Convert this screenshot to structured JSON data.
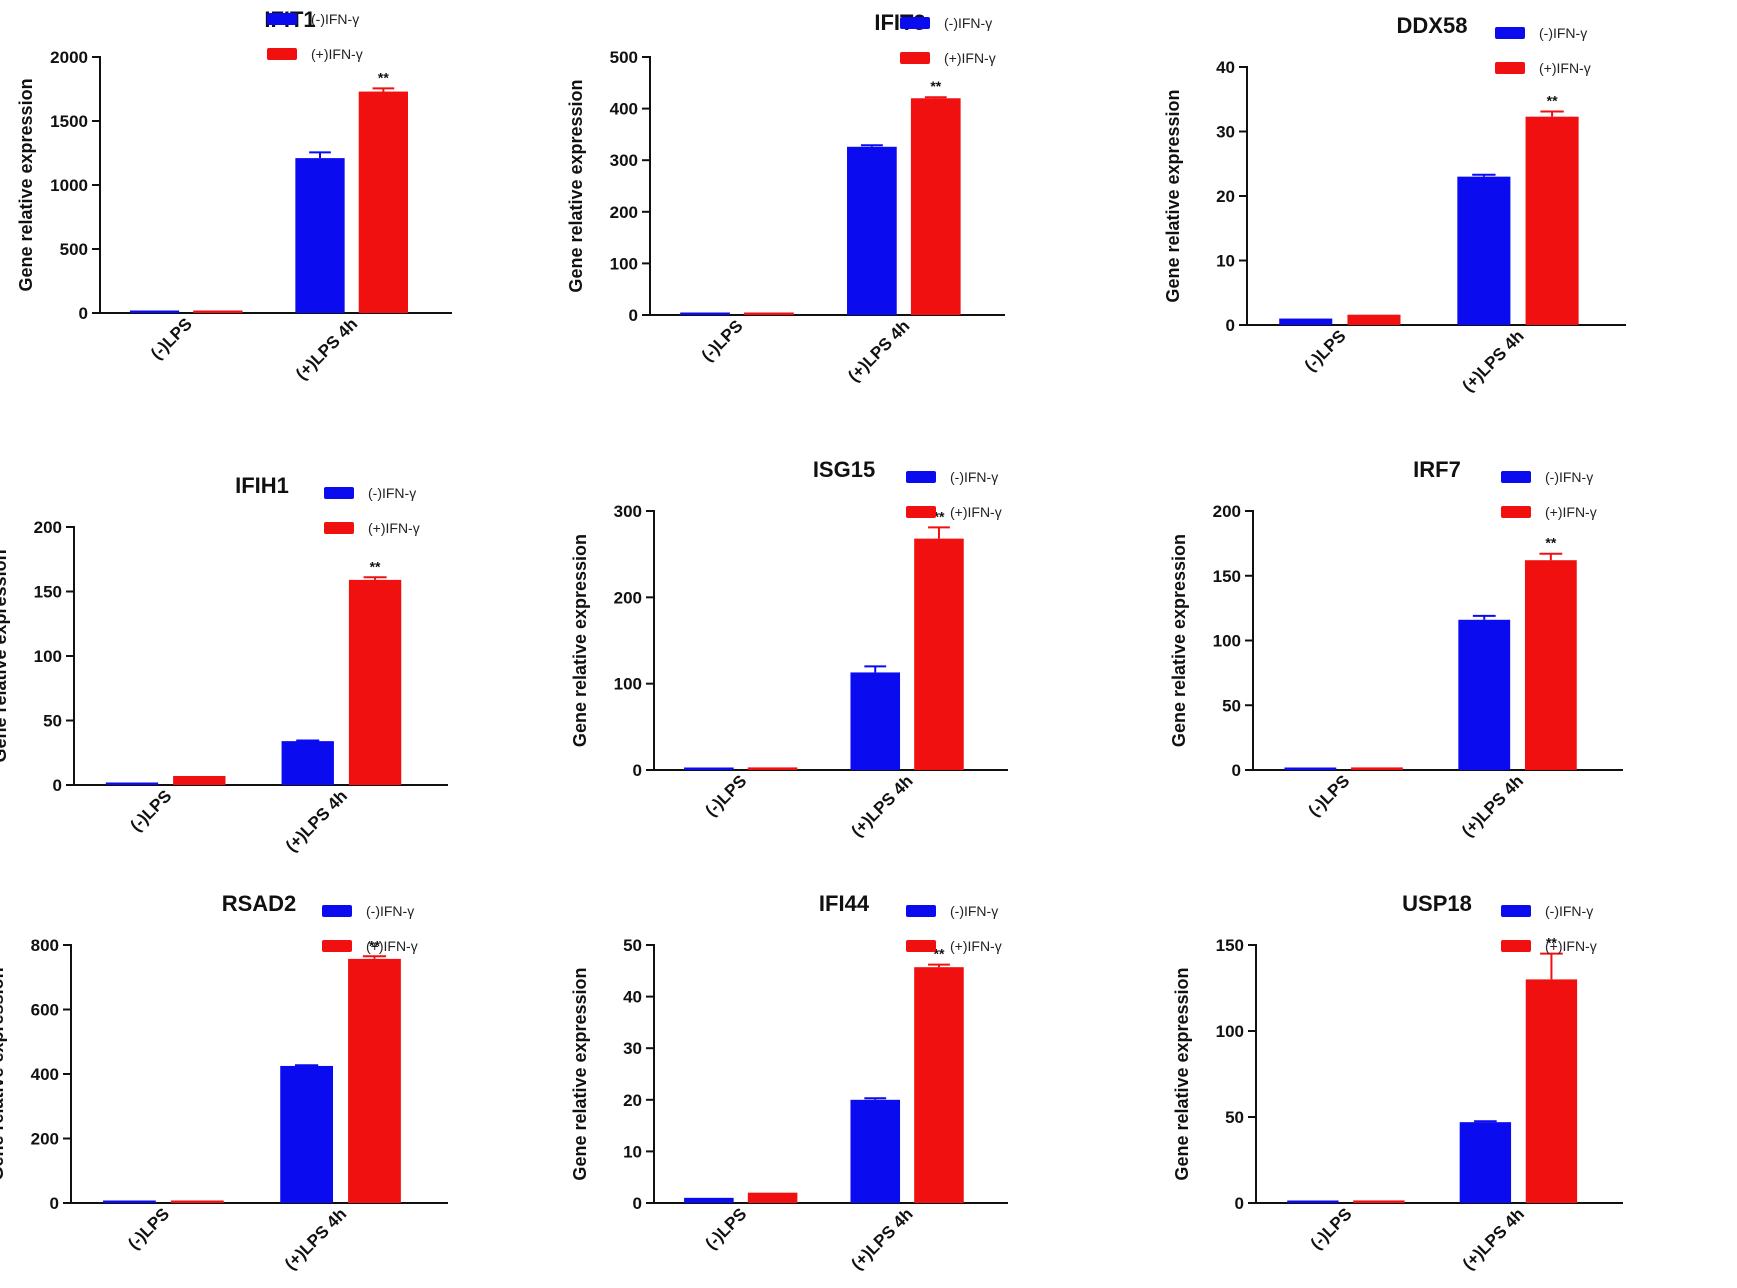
{
  "legend_labels": [
    "(-)IFN-γ",
    "(+)IFN-γ"
  ],
  "chart_data": [
    {
      "type": "bar",
      "title": "IFIT1",
      "ylabel": "Gene relative expression",
      "categories": [
        "(-)LPS",
        "(+)LPS 4h"
      ],
      "ylim": [
        0,
        2000
      ],
      "yticks": [
        0,
        500,
        1000,
        1500,
        2000
      ],
      "series": [
        {
          "name": "(-)IFN-γ",
          "color": "#0b0bf0",
          "values": [
            1,
            1210
          ],
          "errors": [
            0,
            45
          ]
        },
        {
          "name": "(+)IFN-γ",
          "color": "#f01010",
          "values": [
            3,
            1730
          ],
          "errors": [
            0,
            25
          ]
        }
      ],
      "annotation": "**"
    },
    {
      "type": "bar",
      "title": "IFIT3",
      "ylabel": "Gene relative expression",
      "categories": [
        "(-)LPS",
        "(+)LPS 4h"
      ],
      "ylim": [
        0,
        500
      ],
      "yticks": [
        0,
        100,
        200,
        300,
        400,
        500
      ],
      "series": [
        {
          "name": "(-)IFN-γ",
          "color": "#0b0bf0",
          "values": [
            1,
            326
          ],
          "errors": [
            0,
            3
          ]
        },
        {
          "name": "(+)IFN-γ",
          "color": "#f01010",
          "values": [
            2,
            420
          ],
          "errors": [
            0,
            2
          ]
        }
      ],
      "annotation": "**"
    },
    {
      "type": "bar",
      "title": "DDX58",
      "ylabel": "Gene relative expression",
      "categories": [
        "(-)LPS",
        "(+)LPS 4h"
      ],
      "ylim": [
        0,
        40
      ],
      "yticks": [
        0,
        10,
        20,
        30,
        40
      ],
      "series": [
        {
          "name": "(-)IFN-γ",
          "color": "#0b0bf0",
          "values": [
            1,
            23
          ],
          "errors": [
            0,
            0.3
          ]
        },
        {
          "name": "(+)IFN-γ",
          "color": "#f01010",
          "values": [
            1.6,
            32.3
          ],
          "errors": [
            0,
            0.8
          ]
        }
      ],
      "annotation": "**"
    },
    {
      "type": "bar",
      "title": "IFIH1",
      "ylabel": "Gene relative expression",
      "categories": [
        "(-)LPS",
        "(+)LPS 4h"
      ],
      "ylim": [
        0,
        200
      ],
      "yticks": [
        0,
        50,
        100,
        150,
        200
      ],
      "series": [
        {
          "name": "(-)IFN-γ",
          "color": "#0b0bf0",
          "values": [
            1,
            34
          ],
          "errors": [
            0,
            0.5
          ]
        },
        {
          "name": "(+)IFN-γ",
          "color": "#f01010",
          "values": [
            7,
            159
          ],
          "errors": [
            0,
            2
          ]
        }
      ],
      "annotation": "**"
    },
    {
      "type": "bar",
      "title": "ISG15",
      "ylabel": "Gene relative expression",
      "categories": [
        "(-)LPS",
        "(+)LPS 4h"
      ],
      "ylim": [
        0,
        300
      ],
      "yticks": [
        0,
        100,
        200,
        300
      ],
      "series": [
        {
          "name": "(-)IFN-γ",
          "color": "#0b0bf0",
          "values": [
            1,
            113
          ],
          "errors": [
            0,
            7
          ]
        },
        {
          "name": "(+)IFN-γ",
          "color": "#f01010",
          "values": [
            3,
            268
          ],
          "errors": [
            0,
            13
          ]
        }
      ],
      "annotation": "**"
    },
    {
      "type": "bar",
      "title": "IRF7",
      "ylabel": "Gene relative expression",
      "categories": [
        "(-)LPS",
        "(+)LPS 4h"
      ],
      "ylim": [
        0,
        200
      ],
      "yticks": [
        0,
        50,
        100,
        150,
        200
      ],
      "series": [
        {
          "name": "(-)IFN-γ",
          "color": "#0b0bf0",
          "values": [
            1,
            116
          ],
          "errors": [
            0,
            3
          ]
        },
        {
          "name": "(+)IFN-γ",
          "color": "#f01010",
          "values": [
            2,
            162
          ],
          "errors": [
            0,
            5
          ]
        }
      ],
      "annotation": "**"
    },
    {
      "type": "bar",
      "title": "RSAD2",
      "ylabel": "Gene relative expression",
      "categories": [
        "(-)LPS",
        "(+)LPS 4h"
      ],
      "ylim": [
        0,
        800
      ],
      "yticks": [
        0,
        200,
        400,
        600,
        800
      ],
      "series": [
        {
          "name": "(-)IFN-γ",
          "color": "#0b0bf0",
          "values": [
            1,
            425
          ],
          "errors": [
            0,
            2
          ]
        },
        {
          "name": "(+)IFN-γ",
          "color": "#f01010",
          "values": [
            2,
            757
          ],
          "errors": [
            0,
            8
          ]
        }
      ],
      "annotation": "**"
    },
    {
      "type": "bar",
      "title": "IFI44",
      "ylabel": "Gene relative expression",
      "categories": [
        "(-)LPS",
        "(+)LPS 4h"
      ],
      "ylim": [
        0,
        50
      ],
      "yticks": [
        0,
        10,
        20,
        30,
        40,
        50
      ],
      "series": [
        {
          "name": "(-)IFN-γ",
          "color": "#0b0bf0",
          "values": [
            1,
            20
          ],
          "errors": [
            0,
            0.3
          ]
        },
        {
          "name": "(+)IFN-γ",
          "color": "#f01010",
          "values": [
            2,
            45.7
          ],
          "errors": [
            0,
            0.5
          ]
        }
      ],
      "annotation": "**"
    },
    {
      "type": "bar",
      "title": "USP18",
      "ylabel": "Gene relative expression",
      "categories": [
        "(-)LPS",
        "(+)LPS 4h"
      ],
      "ylim": [
        0,
        150
      ],
      "yticks": [
        0,
        50,
        100,
        150
      ],
      "series": [
        {
          "name": "(-)IFN-γ",
          "color": "#0b0bf0",
          "values": [
            1,
            47
          ],
          "errors": [
            0,
            0.5
          ]
        },
        {
          "name": "(+)IFN-γ",
          "color": "#f01010",
          "values": [
            1.5,
            130
          ],
          "errors": [
            0,
            15
          ]
        }
      ],
      "annotation": "**"
    }
  ]
}
